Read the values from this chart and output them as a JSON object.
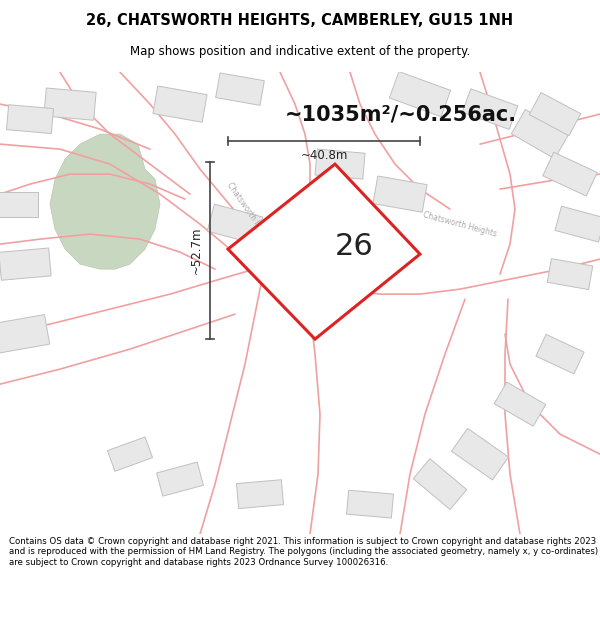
{
  "title": "26, CHATSWORTH HEIGHTS, CAMBERLEY, GU15 1NH",
  "subtitle": "Map shows position and indicative extent of the property.",
  "area_text": "~1035m²/~0.256ac.",
  "plot_number": "26",
  "dim_width": "~40.8m",
  "dim_height": "~52.7m",
  "footer": "Contains OS data © Crown copyright and database right 2021. This information is subject to Crown copyright and database rights 2023 and is reproduced with the permission of HM Land Registry. The polygons (including the associated geometry, namely x, y co-ordinates) are subject to Crown copyright and database rights 2023 Ordnance Survey 100026316.",
  "bg_color": "#ffffff",
  "map_bg": "#ffffff",
  "plot_fill": "#ffffff",
  "plot_edge": "#dd2222",
  "road_color": "#f0a0a0",
  "road_fill": "#f8f0f0",
  "green_fill": "#c8d8c0",
  "green_edge": "#b8c8b0",
  "building_fill": "#e8e8e8",
  "building_edge": "#c0c0c0",
  "title_color": "#000000",
  "footer_color": "#000000",
  "dim_line_color": "#444444",
  "road_label_color": "#aaaaaa",
  "footer_bg": "#f5f5f0"
}
